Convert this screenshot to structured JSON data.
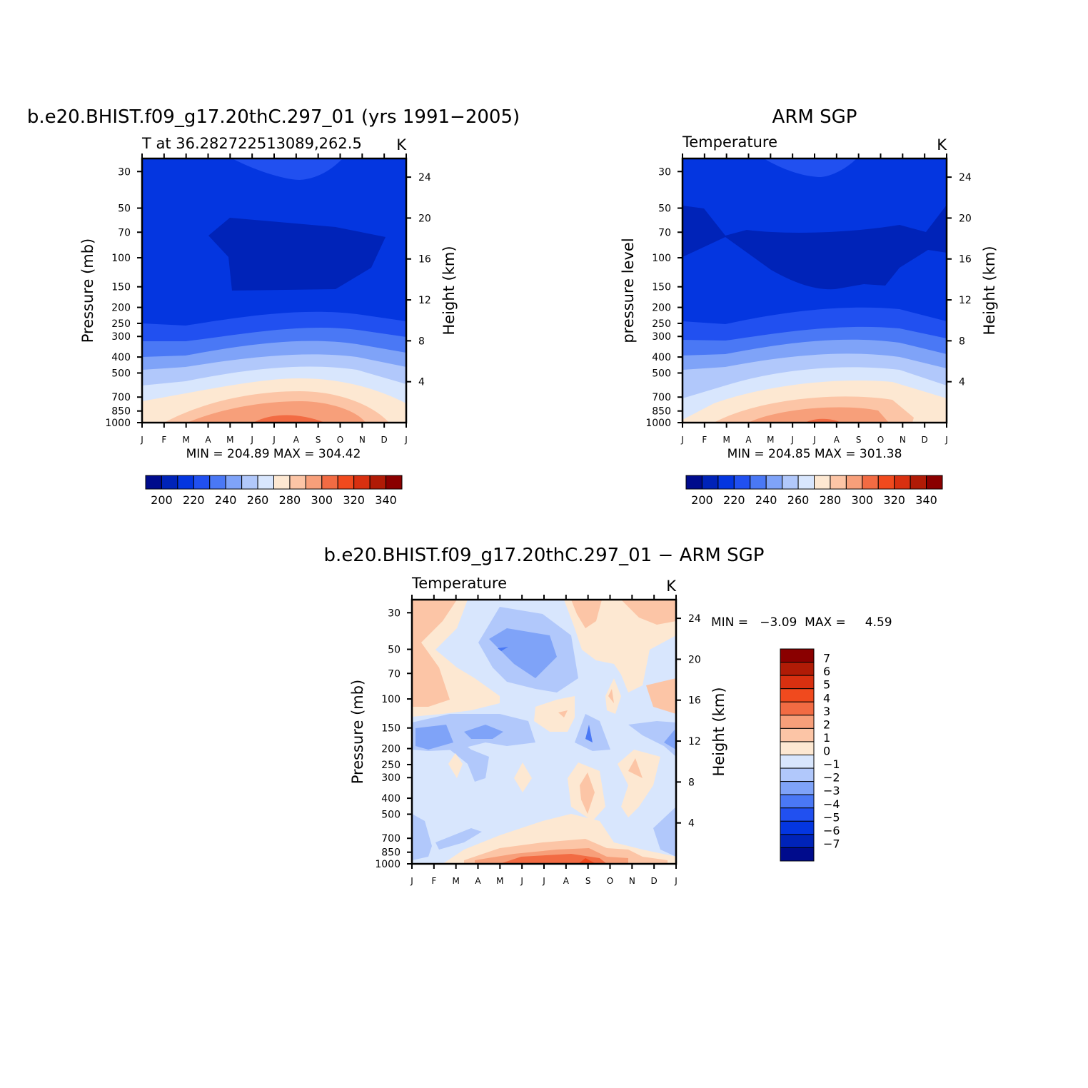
{
  "panels": [
    {
      "id": "model",
      "main_title": "b.e20.BHIST.f09_g17.20thC.297_01 (yrs 1991−2005)",
      "subtitle_left": "T at 36.282722513089,262.5",
      "subtitle_right": "K",
      "left_axis_label": "Pressure (mb)",
      "right_axis_label": "Height (km)",
      "minmax": "MIN = 204.89 MAX = 304.42"
    },
    {
      "id": "obs",
      "main_title": "ARM SGP",
      "subtitle_left": "Temperature",
      "subtitle_right": "K",
      "left_axis_label": "pressure level",
      "right_axis_label": "Height (km)",
      "minmax": "MIN = 204.85 MAX = 301.38"
    },
    {
      "id": "diff",
      "main_title": "b.e20.BHIST.f09_g17.20thC.297_01 − ARM SGP",
      "subtitle_left": "Temperature",
      "subtitle_right": "K",
      "left_axis_label": "Pressure (mb)",
      "right_axis_label": "Height (km)",
      "minmax": "MIN =   −3.09  MAX =     4.59"
    }
  ],
  "chart_data": [
    {
      "type": "heatmap",
      "panel": "model",
      "x": [
        "J",
        "F",
        "M",
        "A",
        "M",
        "J",
        "J",
        "A",
        "S",
        "O",
        "N",
        "D",
        "J"
      ],
      "y_pressure_ticks": [
        30,
        50,
        70,
        100,
        150,
        200,
        250,
        300,
        400,
        500,
        700,
        850,
        1000
      ],
      "y_height_ticks": [
        24,
        20,
        16,
        12,
        8,
        4
      ],
      "yscale": "log pressure",
      "units": "K",
      "min": 204.89,
      "max": 304.42,
      "levels": [
        200,
        210,
        220,
        230,
        240,
        250,
        260,
        270,
        280,
        290,
        300,
        310,
        320,
        330,
        340
      ],
      "colorbar_labels": [
        "200",
        "220",
        "240",
        "260",
        "280",
        "300",
        "320",
        "340"
      ]
    },
    {
      "type": "heatmap",
      "panel": "obs",
      "x": [
        "J",
        "F",
        "M",
        "A",
        "M",
        "J",
        "J",
        "A",
        "S",
        "O",
        "N",
        "D",
        "J"
      ],
      "y_pressure_ticks": [
        30,
        50,
        70,
        100,
        150,
        200,
        250,
        300,
        400,
        500,
        700,
        850,
        1000
      ],
      "y_height_ticks": [
        24,
        20,
        16,
        12,
        8,
        4
      ],
      "yscale": "log pressure",
      "units": "K",
      "min": 204.85,
      "max": 301.38,
      "levels": [
        200,
        210,
        220,
        230,
        240,
        250,
        260,
        270,
        280,
        290,
        300,
        310,
        320,
        330,
        340
      ],
      "colorbar_labels": [
        "200",
        "220",
        "240",
        "260",
        "280",
        "300",
        "320",
        "340"
      ]
    },
    {
      "type": "heatmap",
      "panel": "diff",
      "x": [
        "J",
        "F",
        "M",
        "A",
        "M",
        "J",
        "J",
        "A",
        "S",
        "O",
        "N",
        "D",
        "J"
      ],
      "y_pressure_ticks": [
        30,
        50,
        70,
        100,
        150,
        200,
        250,
        300,
        400,
        500,
        700,
        850,
        1000
      ],
      "y_height_ticks": [
        24,
        20,
        16,
        12,
        8,
        4
      ],
      "yscale": "log pressure",
      "units": "K",
      "min": -3.09,
      "max": 4.59,
      "levels": [
        -7,
        -6,
        -5,
        -4,
        -3,
        -2,
        -1,
        0,
        1,
        2,
        3,
        4,
        5,
        6,
        7
      ],
      "colorbar_labels": [
        "7",
        "6",
        "5",
        "4",
        "3",
        "2",
        "1",
        "0",
        "−1",
        "−2",
        "−3",
        "−4",
        "−5",
        "−6",
        "−7"
      ]
    }
  ],
  "colors": {
    "palette": [
      "#000b8c",
      "#0023b8",
      "#0436e0",
      "#2150f0",
      "#4a78f5",
      "#7fa3f8",
      "#b1c8fb",
      "#d8e6fd",
      "#fde8d2",
      "#fcc5a6",
      "#f79f7a",
      "#f26b43",
      "#f04a1e",
      "#d83010",
      "#b01b06",
      "#8a0000"
    ],
    "strat_model": "#0436e0",
    "strat_deep": "#0023b8",
    "diff_base": "#d8e6fd"
  }
}
